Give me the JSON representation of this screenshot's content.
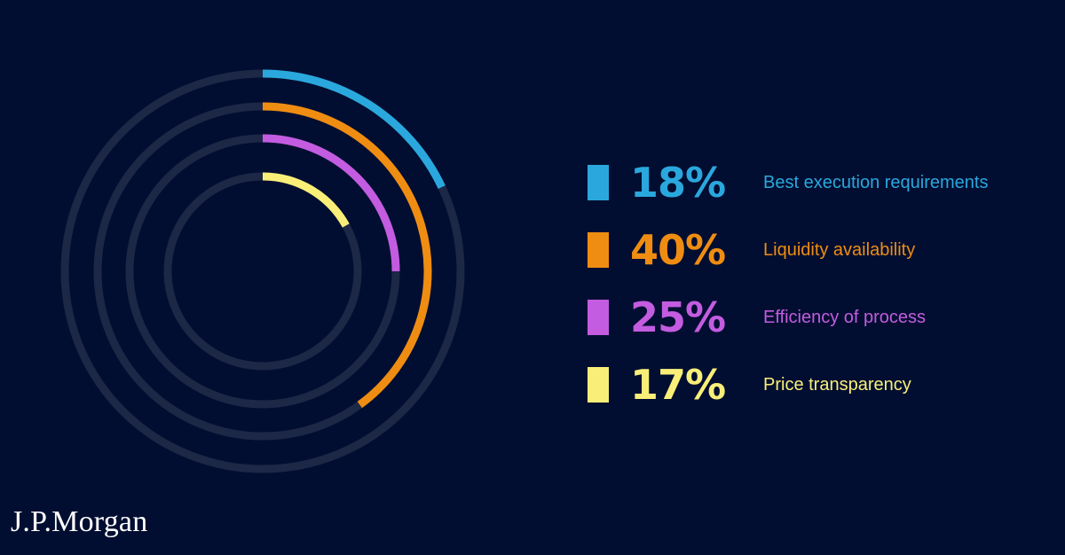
{
  "colors": {
    "background": "#020e31",
    "track": "#1d2746"
  },
  "chart_data": {
    "type": "radial-bar",
    "unit": "%",
    "series": [
      {
        "name": "Best execution requirements",
        "value": 18,
        "label": "18%",
        "color": "#2aa8dd"
      },
      {
        "name": "Liquidity availability",
        "value": 40,
        "label": "40%",
        "color": "#ef8d12"
      },
      {
        "name": "Efficiency of process",
        "value": 25,
        "label": "25%",
        "color": "#c35ce0"
      },
      {
        "name": "Price transparency",
        "value": 17,
        "label": "17%",
        "color": "#f9ef78"
      }
    ]
  },
  "logo": {
    "text": "J.P.Morgan"
  }
}
